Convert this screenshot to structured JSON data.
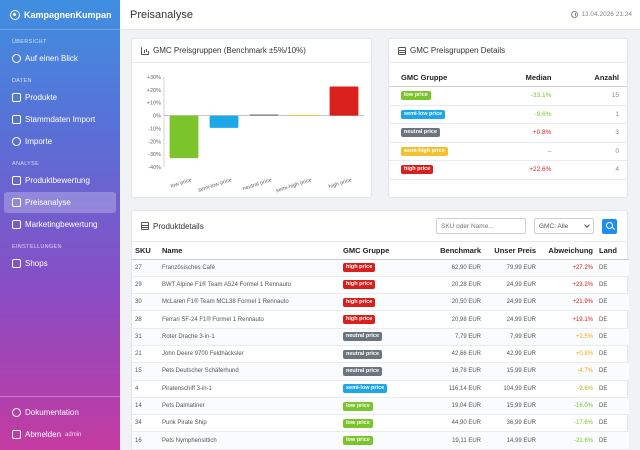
{
  "app": {
    "brand": "KampagnenKumpan"
  },
  "sidebar": {
    "sections": [
      {
        "title": "ÜBERSICHT",
        "items": [
          {
            "label": "Auf einen Blick",
            "icon": "gauge-icon"
          }
        ]
      },
      {
        "title": "DATEN",
        "items": [
          {
            "label": "Produkte",
            "icon": "box-icon"
          },
          {
            "label": "Stammdaten Import",
            "icon": "file-icon"
          },
          {
            "label": "Importe",
            "icon": "cloud-icon"
          }
        ]
      },
      {
        "title": "ANALYSE",
        "items": [
          {
            "label": "Produktbewertung",
            "icon": "chart-icon"
          },
          {
            "label": "Preisanalyse",
            "icon": "tag-icon",
            "active": true
          },
          {
            "label": "Marketingbewertung",
            "icon": "bullhorn-icon"
          }
        ]
      },
      {
        "title": "EINSTELLUNGEN",
        "items": [
          {
            "label": "Shops",
            "icon": "store-icon"
          }
        ]
      }
    ],
    "bottom": {
      "docs": "Dokumentation",
      "logout": "Abmelden",
      "user": "admin"
    }
  },
  "header": {
    "title": "Preisanalyse",
    "date": "13.04.2026 21:24"
  },
  "chart_card": {
    "title": "GMC Preisgruppen (Benchmark ±5%/10%)"
  },
  "chart_data": {
    "type": "bar",
    "categories": [
      "low price",
      "semi-low price",
      "neutral price",
      "semi-high price",
      "high price"
    ],
    "values": [
      -33.1,
      -9.6,
      0.8,
      0,
      22.6
    ],
    "colors": [
      "#7cc42c",
      "#1ea7e8",
      "#6c757d",
      "#f2c12e",
      "#d9201c"
    ],
    "ylim": [
      -40,
      30
    ],
    "yticks": [
      30,
      20,
      10,
      0,
      -10,
      -20,
      -30,
      -40
    ],
    "ytick_labels": [
      "+30%",
      "+20%",
      "+10%",
      "0%",
      "-10%",
      "-20%",
      "-30%",
      "-40%"
    ],
    "grid": false
  },
  "details_card": {
    "title": "GMC Preisgruppen Details",
    "headers": {
      "group": "GMC Gruppe",
      "median": "Median",
      "count": "Anzahl"
    },
    "rows": [
      {
        "group": "low price",
        "median": "-33.1%",
        "count": "15"
      },
      {
        "group": "semi-low price",
        "median": "-9.6%",
        "count": "1"
      },
      {
        "group": "neutral price",
        "median": "+0.8%",
        "count": "3"
      },
      {
        "group": "semi-high price",
        "median": "–",
        "count": "0"
      },
      {
        "group": "high price",
        "median": "+22.6%",
        "count": "4"
      }
    ]
  },
  "products_card": {
    "title": "Produktdetails",
    "search_placeholder": "SKU oder Name...",
    "filter_value": "GMC: Alle",
    "headers": {
      "sku": "SKU",
      "name": "Name",
      "group": "GMC Gruppe",
      "benchmark": "Benchmark",
      "price": "Unser Preis",
      "deviation": "Abweichung",
      "country": "Land"
    },
    "rows": [
      {
        "sku": "27",
        "name": "Französisches Café",
        "group": "high price",
        "benchmark": "62,90 EUR",
        "price": "79,99 EUR",
        "deviation": "+27.2%",
        "country": "DE"
      },
      {
        "sku": "29",
        "name": "BWT Alpine F1® Team A524 Formel 1 Rennauto",
        "group": "high price",
        "benchmark": "20,28 EUR",
        "price": "24,99 EUR",
        "deviation": "+23.2%",
        "country": "DE"
      },
      {
        "sku": "30",
        "name": "McLaren F1® Team MCL38 Formel 1 Rennauto",
        "group": "high price",
        "benchmark": "20,50 EUR",
        "price": "24,99 EUR",
        "deviation": "+21.9%",
        "country": "DE"
      },
      {
        "sku": "28",
        "name": "Ferrari SF-24 F1® Formel 1 Rennauto",
        "group": "high price",
        "benchmark": "20,98 EUR",
        "price": "24,99 EUR",
        "deviation": "+19.1%",
        "country": "DE"
      },
      {
        "sku": "31",
        "name": "Roter Drache 3-in-1",
        "group": "neutral price",
        "benchmark": "7,79 EUR",
        "price": "7,99 EUR",
        "deviation": "+2.5%",
        "country": "DE"
      },
      {
        "sku": "21",
        "name": "John Deere 9700 Feldhäcksler",
        "group": "neutral price",
        "benchmark": "42,66 EUR",
        "price": "42,99 EUR",
        "deviation": "+0.8%",
        "country": "DE"
      },
      {
        "sku": "15",
        "name": "Pets Deutscher Schäferhund",
        "group": "neutral price",
        "benchmark": "16,78 EUR",
        "price": "15,99 EUR",
        "deviation": "-4.7%",
        "country": "DE"
      },
      {
        "sku": "4",
        "name": "Piratenschiff 3-in-1",
        "group": "semi-low price",
        "benchmark": "116,14 EUR",
        "price": "104,99 EUR",
        "deviation": "-9.6%",
        "country": "DE"
      },
      {
        "sku": "14",
        "name": "Pets Dalmatiner",
        "group": "low price",
        "benchmark": "19,04 EUR",
        "price": "15,99 EUR",
        "deviation": "-16.0%",
        "country": "DE"
      },
      {
        "sku": "34",
        "name": "Punk Pirate Ship",
        "group": "low price",
        "benchmark": "44,90 EUR",
        "price": "36,99 EUR",
        "deviation": "-17.6%",
        "country": "DE"
      },
      {
        "sku": "16",
        "name": "Pets Nymphensittich",
        "group": "low price",
        "benchmark": "19,11 EUR",
        "price": "14,99 EUR",
        "deviation": "-21.6%",
        "country": "DE"
      }
    ]
  }
}
